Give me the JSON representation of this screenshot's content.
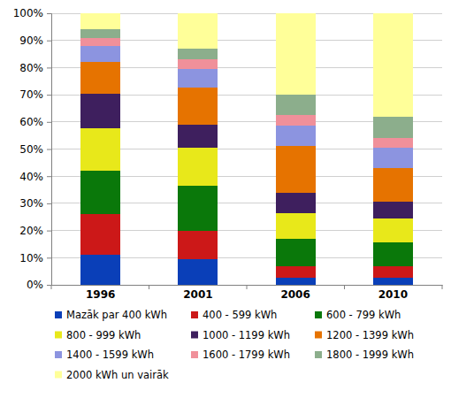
{
  "chart_data": {
    "type": "bar",
    "stacked": true,
    "grid": true,
    "legend": "bottom",
    "categories": [
      "1996",
      "2001",
      "2006",
      "2010"
    ],
    "ylim": [
      0,
      100
    ],
    "yticks": [
      {
        "value": 0,
        "label": "0%"
      },
      {
        "value": 10,
        "label": "10%"
      },
      {
        "value": 20,
        "label": "20%"
      },
      {
        "value": 30,
        "label": "30%"
      },
      {
        "value": 40,
        "label": "40%"
      },
      {
        "value": 50,
        "label": "50%"
      },
      {
        "value": 60,
        "label": "60%"
      },
      {
        "value": 70,
        "label": "70%"
      },
      {
        "value": 80,
        "label": "80%"
      },
      {
        "value": 90,
        "label": "90%"
      },
      {
        "value": 100,
        "label": "100%"
      }
    ],
    "series": [
      {
        "name": "Mazāk par 400 kWh",
        "color": "#0a3fb8",
        "values": [
          11,
          9.5,
          2.5,
          2.5
        ]
      },
      {
        "name": "400 - 599 kWh",
        "color": "#cc1818",
        "values": [
          15,
          10.5,
          4.5,
          4.5
        ]
      },
      {
        "name": "600 - 799 kWh",
        "color": "#0a780a",
        "values": [
          16,
          16.5,
          10,
          8.5
        ]
      },
      {
        "name": "800 - 999 kWh",
        "color": "#e8e81a",
        "values": [
          15.5,
          14,
          9.5,
          9
        ]
      },
      {
        "name": "1000 - 1199 kWh",
        "color": "#3e1f5e",
        "values": [
          13,
          8.5,
          7.5,
          6
        ]
      },
      {
        "name": "1200 - 1399 kWh",
        "color": "#e67300",
        "values": [
          11.5,
          13.5,
          17,
          12.5
        ]
      },
      {
        "name": "1400 - 1599 kWh",
        "color": "#8c94e0",
        "values": [
          6,
          7,
          7.5,
          7.5
        ]
      },
      {
        "name": "1600 - 1799 kWh",
        "color": "#f0909a",
        "values": [
          3,
          3.5,
          4,
          3.5
        ]
      },
      {
        "name": "1800 - 1999 kWh",
        "color": "#8cae8c",
        "values": [
          3,
          4,
          7.5,
          8
        ]
      },
      {
        "name": "2000 kWh un vairāk",
        "color": "#ffff99",
        "values": [
          6,
          13,
          30,
          38
        ]
      }
    ]
  }
}
